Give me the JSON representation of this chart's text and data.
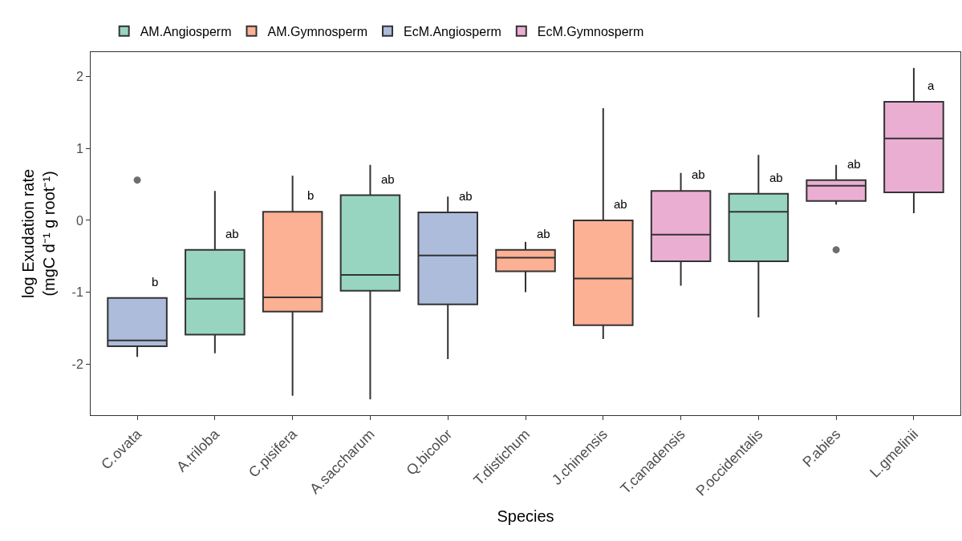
{
  "chart_data": {
    "type": "box",
    "xlabel": "Species",
    "ylabel": "log Exudation rate\n(mgC d⁻¹ g root⁻¹)",
    "categories": [
      "C.ovata",
      "A.triloba",
      "C.pisifera",
      "A.saccharum",
      "Q.bicolor",
      "T.distichum",
      "J.chinensis",
      "T.canadensis",
      "P.occidentalis",
      "P.abies",
      "L.gmelinii"
    ],
    "ylim": [
      -2.71,
      2.34
    ],
    "yticks": [
      -2,
      -1,
      0,
      1,
      2
    ],
    "legend": "top",
    "series": [
      {
        "name": "AM.Angiosperm",
        "color": "#98d5c1",
        "boxes": [
          null,
          {
            "low": -1.85,
            "q1": -1.59,
            "median": -1.09,
            "q3": -0.41,
            "high": 0.41
          },
          null,
          {
            "low": -2.49,
            "q1": -0.98,
            "median": -0.76,
            "q3": 0.35,
            "high": 0.77
          },
          null,
          null,
          null,
          null,
          {
            "low": -1.35,
            "q1": -0.57,
            "median": 0.12,
            "q3": 0.37,
            "high": 0.91
          },
          null,
          null
        ]
      },
      {
        "name": "AM.Gymnosperm",
        "color": "#fcb094",
        "boxes": [
          null,
          null,
          {
            "low": -2.44,
            "q1": -1.27,
            "median": -1.07,
            "q3": 0.12,
            "high": 0.62
          },
          null,
          null,
          {
            "low": -1.0,
            "q1": -0.71,
            "median": -0.52,
            "q3": -0.41,
            "high": -0.3
          },
          {
            "low": -1.65,
            "q1": -1.46,
            "median": -0.81,
            "q3": 0.0,
            "high": 1.56
          },
          null,
          null,
          null,
          null
        ]
      },
      {
        "name": "EcM.Angiosperm",
        "color": "#aebcdb",
        "boxes": [
          {
            "low": -1.9,
            "q1": -1.75,
            "median": -1.67,
            "q3": -1.08,
            "high": -1.08,
            "outliers": [
              0.56
            ]
          },
          null,
          null,
          null,
          {
            "low": -1.93,
            "q1": -1.17,
            "median": -0.49,
            "q3": 0.11,
            "high": 0.33
          },
          null,
          null,
          null,
          null,
          null,
          null
        ]
      },
      {
        "name": "EcM.Gymnosperm",
        "color": "#ebaed3",
        "boxes": [
          null,
          null,
          null,
          null,
          null,
          null,
          null,
          {
            "low": -0.91,
            "q1": -0.57,
            "median": -0.2,
            "q3": 0.41,
            "high": 0.66
          },
          null,
          {
            "low": 0.22,
            "q1": 0.27,
            "median": 0.48,
            "q3": 0.56,
            "high": 0.77,
            "outliers": [
              -0.41
            ]
          },
          {
            "low": 0.1,
            "q1": 0.39,
            "median": 1.14,
            "q3": 1.65,
            "high": 2.12
          }
        ]
      }
    ],
    "annotations": [
      "b",
      "ab",
      "b",
      "ab",
      "ab",
      "ab",
      "ab",
      "ab",
      "ab",
      "ab",
      "a"
    ]
  }
}
